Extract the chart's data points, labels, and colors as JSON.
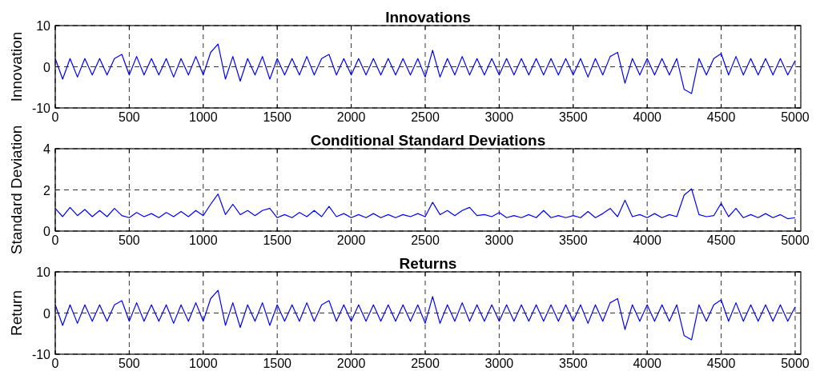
{
  "chart_data": [
    {
      "type": "line",
      "title": "Innovations",
      "ylabel": "Innovation",
      "xlim": [
        0,
        5038
      ],
      "ylim": [
        -10,
        10
      ],
      "xticks": [
        0,
        500,
        1000,
        1500,
        2000,
        2500,
        3000,
        3500,
        4000,
        4500,
        5000
      ],
      "yticks": [
        -10,
        0,
        10
      ],
      "grid": true,
      "x": [
        0,
        50,
        100,
        150,
        200,
        250,
        300,
        350,
        400,
        450,
        500,
        550,
        600,
        650,
        700,
        750,
        800,
        850,
        900,
        950,
        1000,
        1050,
        1100,
        1150,
        1200,
        1250,
        1300,
        1350,
        1400,
        1450,
        1500,
        1550,
        1600,
        1650,
        1700,
        1750,
        1800,
        1850,
        1900,
        1950,
        2000,
        2050,
        2100,
        2150,
        2200,
        2250,
        2300,
        2350,
        2400,
        2450,
        2500,
        2550,
        2600,
        2650,
        2700,
        2750,
        2800,
        2850,
        2900,
        2950,
        3000,
        3050,
        3100,
        3150,
        3200,
        3250,
        3300,
        3350,
        3400,
        3450,
        3500,
        3550,
        3600,
        3650,
        3700,
        3750,
        3800,
        3850,
        3900,
        3950,
        4000,
        4050,
        4100,
        4150,
        4200,
        4250,
        4300,
        4350,
        4400,
        4450,
        4500,
        4550,
        4600,
        4650,
        4700,
        4750,
        4800,
        4850,
        4900,
        4950,
        5000
      ],
      "series": [
        {
          "color": "#0000ff",
          "values": [
            2,
            -3,
            2,
            -2.5,
            2,
            -2,
            2,
            -2,
            2,
            3,
            -2,
            2.5,
            -2,
            2,
            -2,
            2,
            -2.5,
            2,
            -2,
            2.5,
            -2,
            3.5,
            5.5,
            -3,
            2.5,
            -3.5,
            2,
            -2,
            2.5,
            -3,
            2,
            -2,
            2,
            -2,
            2.5,
            -2,
            2,
            3,
            -2,
            2,
            -2,
            2,
            -2,
            2,
            -2,
            2,
            -2,
            2,
            -2,
            2,
            -2.5,
            4,
            -2.5,
            2,
            -2,
            2.5,
            -2,
            2,
            -2,
            2,
            -2,
            2,
            -2,
            2,
            -2,
            2,
            -2,
            2,
            -2,
            2,
            -2,
            2,
            -2.5,
            2,
            -2,
            2.5,
            3.5,
            -4,
            2,
            -2,
            2,
            -2,
            2,
            -2,
            2,
            -5.5,
            -6.5,
            2,
            -2,
            2,
            3.2,
            -2,
            2.5,
            -2,
            2,
            -2,
            2,
            -2,
            2,
            -2,
            1.5
          ]
        }
      ]
    },
    {
      "type": "line",
      "title": "Conditional Standard Deviations",
      "ylabel": "Standard Deviation",
      "xlim": [
        0,
        5038
      ],
      "ylim": [
        0,
        4
      ],
      "xticks": [
        0,
        500,
        1000,
        1500,
        2000,
        2500,
        3000,
        3500,
        4000,
        4500,
        5000
      ],
      "yticks": [
        0,
        2,
        4
      ],
      "grid": true,
      "x": [
        0,
        50,
        100,
        150,
        200,
        250,
        300,
        350,
        400,
        450,
        500,
        550,
        600,
        650,
        700,
        750,
        800,
        850,
        900,
        950,
        1000,
        1050,
        1100,
        1150,
        1200,
        1250,
        1300,
        1350,
        1400,
        1450,
        1500,
        1550,
        1600,
        1650,
        1700,
        1750,
        1800,
        1850,
        1900,
        1950,
        2000,
        2050,
        2100,
        2150,
        2200,
        2250,
        2300,
        2350,
        2400,
        2450,
        2500,
        2550,
        2600,
        2650,
        2700,
        2750,
        2800,
        2850,
        2900,
        2950,
        3000,
        3050,
        3100,
        3150,
        3200,
        3250,
        3300,
        3350,
        3400,
        3450,
        3500,
        3550,
        3600,
        3650,
        3700,
        3750,
        3800,
        3850,
        3900,
        3950,
        4000,
        4050,
        4100,
        4150,
        4200,
        4250,
        4300,
        4350,
        4400,
        4450,
        4500,
        4550,
        4600,
        4650,
        4700,
        4750,
        4800,
        4850,
        4900,
        4950,
        5000
      ],
      "series": [
        {
          "color": "#0000ff",
          "values": [
            1.1,
            0.7,
            1.15,
            0.75,
            1.05,
            0.7,
            1,
            0.7,
            1.1,
            0.75,
            0.65,
            0.9,
            0.7,
            0.85,
            0.65,
            0.9,
            0.7,
            0.95,
            0.7,
            1,
            0.75,
            1.3,
            1.8,
            0.8,
            1.3,
            0.8,
            1,
            0.75,
            1,
            1.1,
            0.65,
            0.8,
            0.65,
            0.9,
            0.7,
            1,
            0.7,
            1.2,
            0.7,
            0.85,
            0.65,
            0.8,
            0.65,
            0.85,
            0.65,
            0.8,
            0.65,
            0.8,
            0.7,
            0.85,
            0.7,
            1.4,
            0.8,
            1,
            0.75,
            1,
            1.15,
            0.75,
            0.8,
            0.7,
            0.9,
            0.65,
            0.75,
            0.65,
            0.8,
            0.65,
            1,
            0.65,
            0.75,
            0.65,
            0.75,
            0.65,
            0.95,
            0.65,
            0.85,
            1.1,
            0.7,
            1.5,
            0.7,
            0.8,
            0.65,
            0.85,
            0.65,
            0.8,
            0.7,
            1.75,
            2.05,
            0.8,
            0.7,
            0.75,
            1.35,
            0.7,
            1.1,
            0.65,
            0.8,
            0.65,
            0.85,
            0.65,
            0.8,
            0.6,
            0.65
          ]
        }
      ]
    },
    {
      "type": "line",
      "title": "Returns",
      "ylabel": "Return",
      "xlim": [
        0,
        5038
      ],
      "ylim": [
        -10,
        10
      ],
      "xticks": [
        0,
        500,
        1000,
        1500,
        2000,
        2500,
        3000,
        3500,
        4000,
        4500,
        5000
      ],
      "yticks": [
        -10,
        0,
        10
      ],
      "grid": true,
      "x": [
        0,
        50,
        100,
        150,
        200,
        250,
        300,
        350,
        400,
        450,
        500,
        550,
        600,
        650,
        700,
        750,
        800,
        850,
        900,
        950,
        1000,
        1050,
        1100,
        1150,
        1200,
        1250,
        1300,
        1350,
        1400,
        1450,
        1500,
        1550,
        1600,
        1650,
        1700,
        1750,
        1800,
        1850,
        1900,
        1950,
        2000,
        2050,
        2100,
        2150,
        2200,
        2250,
        2300,
        2350,
        2400,
        2450,
        2500,
        2550,
        2600,
        2650,
        2700,
        2750,
        2800,
        2850,
        2900,
        2950,
        3000,
        3050,
        3100,
        3150,
        3200,
        3250,
        3300,
        3350,
        3400,
        3450,
        3500,
        3550,
        3600,
        3650,
        3700,
        3750,
        3800,
        3850,
        3900,
        3950,
        4000,
        4050,
        4100,
        4150,
        4200,
        4250,
        4300,
        4350,
        4400,
        4450,
        4500,
        4550,
        4600,
        4650,
        4700,
        4750,
        4800,
        4850,
        4900,
        4950,
        5000
      ],
      "series": [
        {
          "color": "#0000ff",
          "values": [
            2,
            -3,
            2,
            -2.5,
            2,
            -2,
            2,
            -2,
            2,
            3,
            -2,
            2.5,
            -2,
            2,
            -2,
            2,
            -2.5,
            2,
            -2,
            2.5,
            -2,
            3.5,
            5.5,
            -3,
            2.5,
            -3.5,
            2,
            -2,
            2.5,
            -3,
            2,
            -2,
            2,
            -2,
            2.5,
            -2,
            2,
            3,
            -2,
            2,
            -2,
            2,
            -2,
            2,
            -2,
            2,
            -2,
            2,
            -2,
            2,
            -2.5,
            4,
            -2.5,
            2,
            -2,
            2.5,
            -2,
            2,
            -2,
            2,
            -2,
            2,
            -2,
            2,
            -2,
            2,
            -2,
            2,
            -2,
            2,
            -2,
            2,
            -2.5,
            2,
            -2,
            2.5,
            3.5,
            -4,
            2,
            -2,
            2,
            -2,
            2,
            -2,
            2,
            -5.5,
            -6.5,
            2,
            -2,
            2,
            3.2,
            -2,
            2.5,
            -2,
            2,
            -2,
            2,
            -2,
            2,
            -2,
            1.5
          ]
        }
      ]
    }
  ]
}
